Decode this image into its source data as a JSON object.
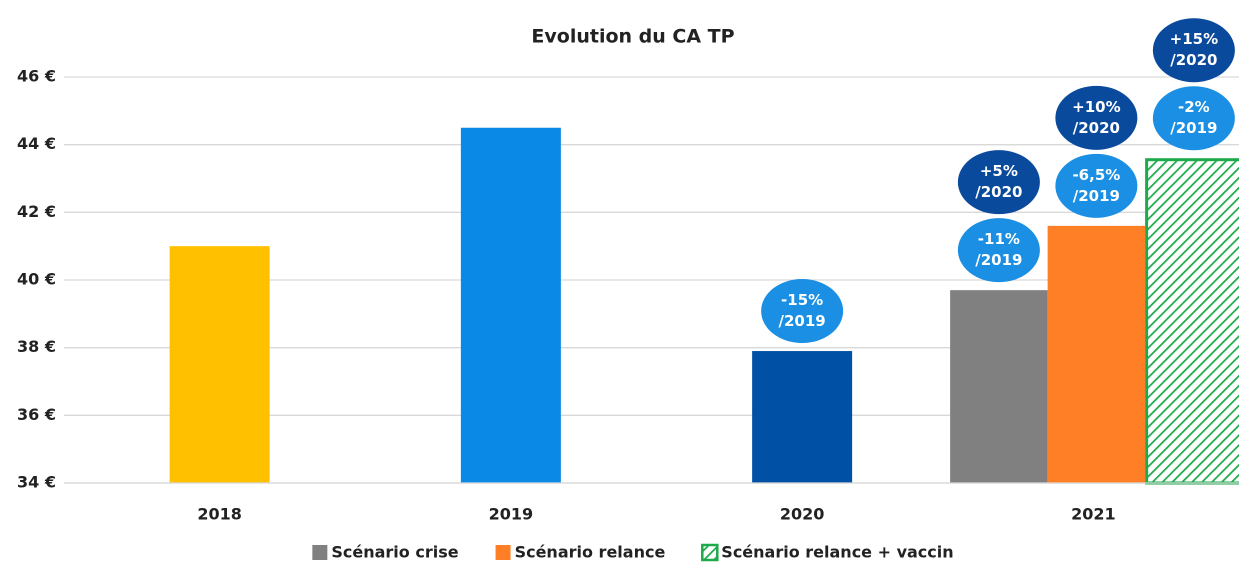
{
  "chart_data": {
    "type": "bar",
    "title": "Evolution du CA TP",
    "categories": [
      "2018",
      "2019",
      "2020",
      "2021"
    ],
    "values": [
      41.0,
      44.5,
      37.9,
      null
    ],
    "colors": [
      "#ffc000",
      "#0a8ae6",
      "#0050a6",
      null
    ],
    "value_annotations": [
      null,
      null,
      [
        [
          "-15%",
          "/2019"
        ]
      ],
      null
    ],
    "series": [
      {
        "name": "Scénario crise",
        "color": "#808080",
        "values": [
          null,
          null,
          null,
          39.7
        ],
        "value_annotations": [
          null,
          null,
          null,
          [
            [
              "-11%",
              "/2019"
            ],
            [
              "+5%",
              "/2020"
            ]
          ]
        ]
      },
      {
        "name": "Scénario relance",
        "color": "#ff7f27",
        "values": [
          null,
          null,
          null,
          41.6
        ],
        "value_annotations": [
          null,
          null,
          null,
          [
            [
              "-6,5%",
              "/2019"
            ],
            [
              "+10%",
              "/2020"
            ]
          ]
        ]
      },
      {
        "name": "Scénario relance + vaccin",
        "color": "#1eaa4a",
        "pattern": "hatch",
        "values": [
          null,
          null,
          null,
          43.6
        ],
        "value_annotations": [
          null,
          null,
          null,
          [
            [
              "-2%",
              "/2019"
            ],
            [
              "+15%",
              "/2020"
            ]
          ]
        ]
      }
    ],
    "bubble_colors": [
      "#1a8fe3",
      "#0a4a9c"
    ],
    "ylim": [
      34,
      46
    ],
    "yticks": [
      {
        "value": 34,
        "label": "34 €"
      },
      {
        "value": 36,
        "label": "36 €"
      },
      {
        "value": 38,
        "label": "38 €"
      },
      {
        "value": 40,
        "label": "40 €"
      },
      {
        "value": 42,
        "label": "42 €"
      },
      {
        "value": 44,
        "label": "44 €"
      },
      {
        "value": 46,
        "label": "46 €"
      }
    ],
    "grid": true
  }
}
